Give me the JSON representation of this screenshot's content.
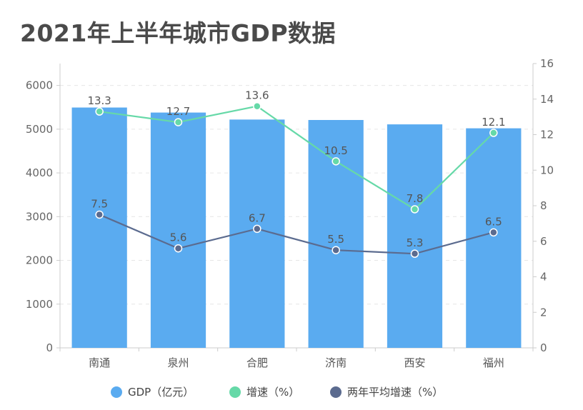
{
  "chart_data": {
    "type": "bar",
    "title": "2021年上半年城市GDP数据",
    "categories": [
      "南通",
      "泉州",
      "合肥",
      "济南",
      "西安",
      "福州"
    ],
    "series": [
      {
        "name": "GDP（亿元）",
        "type": "bar",
        "axis": "left",
        "values": [
          5495,
          5380,
          5220,
          5210,
          5110,
          5020
        ],
        "color": "#5aabf0"
      },
      {
        "name": "增速（%）",
        "type": "line",
        "axis": "right",
        "values": [
          13.3,
          12.7,
          13.6,
          10.5,
          7.8,
          12.1
        ],
        "color": "#66d9a8"
      },
      {
        "name": "两年平均增速（%）",
        "type": "line",
        "axis": "right",
        "values": [
          7.5,
          5.6,
          6.7,
          5.5,
          5.3,
          6.5
        ],
        "color": "#5b6b8f"
      }
    ],
    "y_left": {
      "ticks": [
        0,
        1000,
        2000,
        3000,
        4000,
        5000,
        6000
      ],
      "ylim": [
        0,
        6500
      ]
    },
    "y_right": {
      "ticks": [
        0,
        2,
        4,
        6,
        8,
        10,
        12,
        14,
        16
      ],
      "ylim": [
        0,
        16
      ]
    },
    "grid": true,
    "legend": "bottom"
  }
}
